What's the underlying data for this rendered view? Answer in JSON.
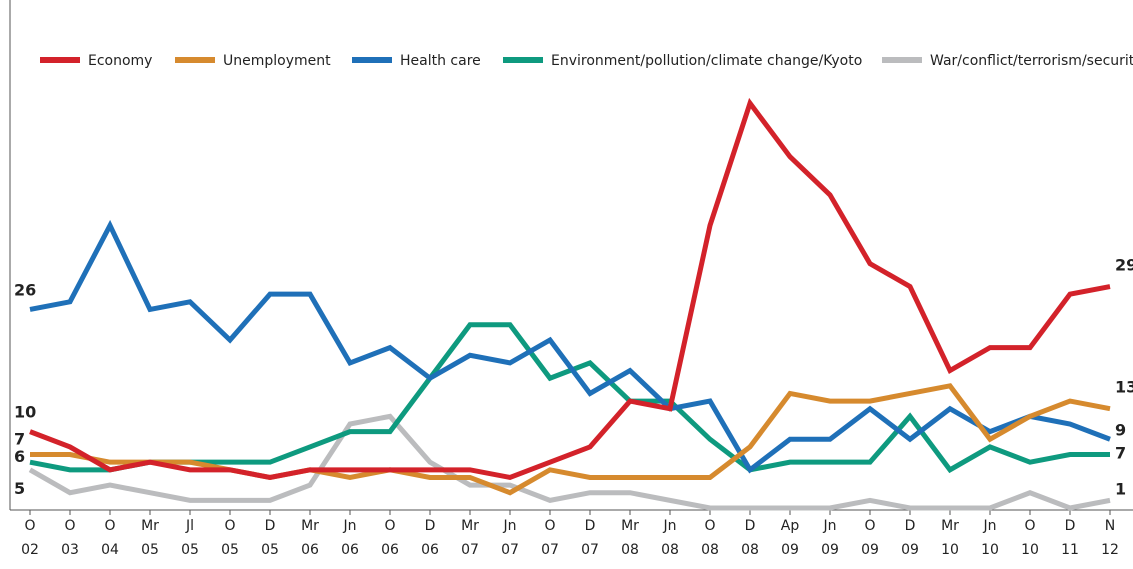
{
  "chart_data": {
    "type": "line",
    "categories": [
      "O\n02",
      "O\n03",
      "O\n04",
      "Mr\n05",
      "Jl\n05",
      "O\n05",
      "D\n05",
      "Mr\n06",
      "Jn\n06",
      "O\n06",
      "D\n06",
      "Mr\n07",
      "Jn\n07",
      "O\n07",
      "D\n07",
      "Mr\n08",
      "Jn\n08",
      "O\n08",
      "D\n08",
      "Ap\n09",
      "Jn\n09",
      "O\n09",
      "D\n09",
      "Mr\n10",
      "Jn\n10",
      "O\n10",
      "D\n11",
      "N\n12"
    ],
    "series": [
      {
        "name": "Economy",
        "color": "#d3222a",
        "values": [
          10,
          8,
          5,
          6,
          5,
          5,
          4,
          5,
          5,
          5,
          5,
          5,
          4,
          6,
          8,
          14,
          13,
          37,
          53,
          46,
          41,
          32,
          29,
          18,
          21,
          21,
          28,
          29
        ]
      },
      {
        "name": "Unemployment",
        "color": "#d68a2e",
        "values": [
          7,
          7,
          6,
          6,
          6,
          5,
          4,
          5,
          4,
          5,
          4,
          4,
          2,
          5,
          4,
          4,
          4,
          4,
          8,
          15,
          14,
          14,
          15,
          16,
          9,
          12,
          14,
          13
        ]
      },
      {
        "name": "Health care",
        "color": "#1f70b8",
        "values": [
          26,
          27,
          37,
          26,
          27,
          22,
          28,
          28,
          19,
          21,
          17,
          20,
          19,
          22,
          15,
          18,
          13,
          14,
          5,
          9,
          9,
          13,
          9,
          13,
          10,
          12,
          11,
          9
        ]
      },
      {
        "name": "Environment/pollution/climate change/Kyoto",
        "color": "#0e9a7f",
        "values": [
          6,
          5,
          5,
          6,
          6,
          6,
          6,
          8,
          10,
          10,
          17,
          24,
          24,
          17,
          19,
          14,
          14,
          9,
          5,
          6,
          6,
          6,
          12,
          5,
          8,
          6,
          7,
          7
        ]
      },
      {
        "name": "War/conflict/terrorism/security",
        "color": "#bbbcbe",
        "values": [
          5,
          2,
          3,
          2,
          1,
          1,
          1,
          3,
          11,
          12,
          6,
          3,
          3,
          1,
          2,
          2,
          1,
          0,
          0,
          0,
          0,
          1,
          0,
          0,
          0,
          2,
          0,
          1
        ]
      }
    ],
    "ylim": [
      0,
      55
    ],
    "legend": "top"
  }
}
